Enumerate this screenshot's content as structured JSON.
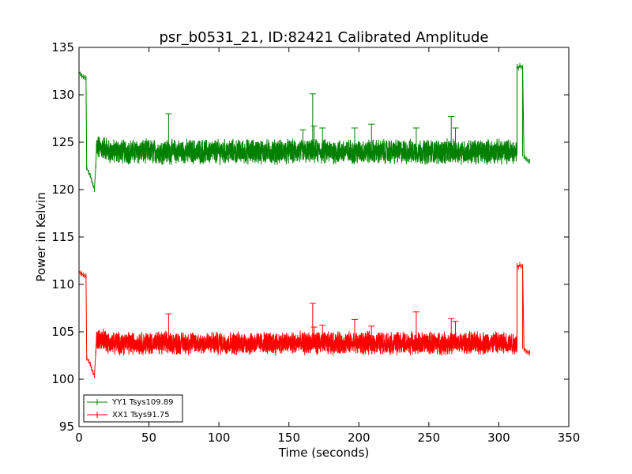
{
  "chart_data": {
    "type": "line",
    "title": "psr_b0531_21, ID:82421 Calibrated Amplitude",
    "xlabel": "Time (seconds)",
    "ylabel": "Power in Kelvin",
    "xlim": [
      0,
      350
    ],
    "ylim": [
      95,
      135
    ],
    "xticks": [
      0,
      50,
      100,
      150,
      200,
      250,
      300,
      350
    ],
    "yticks": [
      95,
      100,
      105,
      110,
      115,
      120,
      125,
      130,
      135
    ],
    "grid": false,
    "legend_position": "lower-left",
    "series": [
      {
        "name": "YY1 Tsys109.89",
        "color": "#008000",
        "baseline": 124.0,
        "noise": 0.9,
        "start": {
          "t": [
            0,
            1,
            2,
            3,
            4,
            5
          ],
          "v": [
            132.4,
            132.2,
            132.0,
            131.9,
            131.8,
            131.8
          ]
        },
        "dip": {
          "t": [
            5.5,
            7,
            8,
            9,
            10,
            11,
            12
          ],
          "v": [
            122.3,
            121.8,
            121.5,
            121.0,
            120.5,
            120.0,
            122.5
          ]
        },
        "plateau": {
          "t0": 12,
          "t1": 313
        },
        "high_end": {
          "t": [
            313,
            314,
            315,
            316,
            317
          ],
          "v": [
            133.0,
            132.8,
            133.1,
            132.9,
            132.9
          ]
        },
        "tail": {
          "t": [
            318,
            319,
            320,
            321,
            322
          ],
          "v": [
            123.5,
            123.3,
            123.2,
            123.0,
            123.0
          ]
        },
        "spikes": [
          {
            "t": 64,
            "v": 128.0
          },
          {
            "t": 160,
            "v": 126.3
          },
          {
            "t": 167,
            "v": 130.1
          },
          {
            "t": 168,
            "v": 126.7
          },
          {
            "t": 174,
            "v": 126.5
          },
          {
            "t": 197,
            "v": 126.5
          },
          {
            "t": 209,
            "v": 126.9
          },
          {
            "t": 241,
            "v": 126.5
          },
          {
            "t": 266,
            "v": 127.7
          },
          {
            "t": 269,
            "v": 126.5
          }
        ]
      },
      {
        "name": "XX1 Tsys91.75",
        "color": "#ff0000",
        "baseline": 103.8,
        "noise": 0.8,
        "start": {
          "t": [
            0,
            1,
            2,
            3,
            4,
            5
          ],
          "v": [
            111.4,
            111.2,
            111.1,
            111.0,
            110.9,
            110.9
          ]
        },
        "dip": {
          "t": [
            5.5,
            7,
            8,
            9,
            10,
            11,
            12
          ],
          "v": [
            102.2,
            101.9,
            101.6,
            101.1,
            100.7,
            100.4,
            102.8
          ]
        },
        "plateau": {
          "t0": 12,
          "t1": 313
        },
        "high_end": {
          "t": [
            313,
            314,
            315,
            316,
            317
          ],
          "v": [
            112.0,
            111.8,
            112.1,
            111.9,
            111.9
          ]
        },
        "tail": {
          "t": [
            318,
            319,
            320,
            321,
            322
          ],
          "v": [
            103.2,
            103.0,
            102.9,
            102.8,
            102.8
          ]
        },
        "spikes": [
          {
            "t": 64,
            "v": 106.9
          },
          {
            "t": 167,
            "v": 108.0
          },
          {
            "t": 168,
            "v": 105.5
          },
          {
            "t": 174,
            "v": 105.7
          },
          {
            "t": 197,
            "v": 106.3
          },
          {
            "t": 209,
            "v": 105.6
          },
          {
            "t": 241,
            "v": 107.1
          },
          {
            "t": 266,
            "v": 106.4
          },
          {
            "t": 269,
            "v": 106.1
          }
        ]
      }
    ]
  }
}
